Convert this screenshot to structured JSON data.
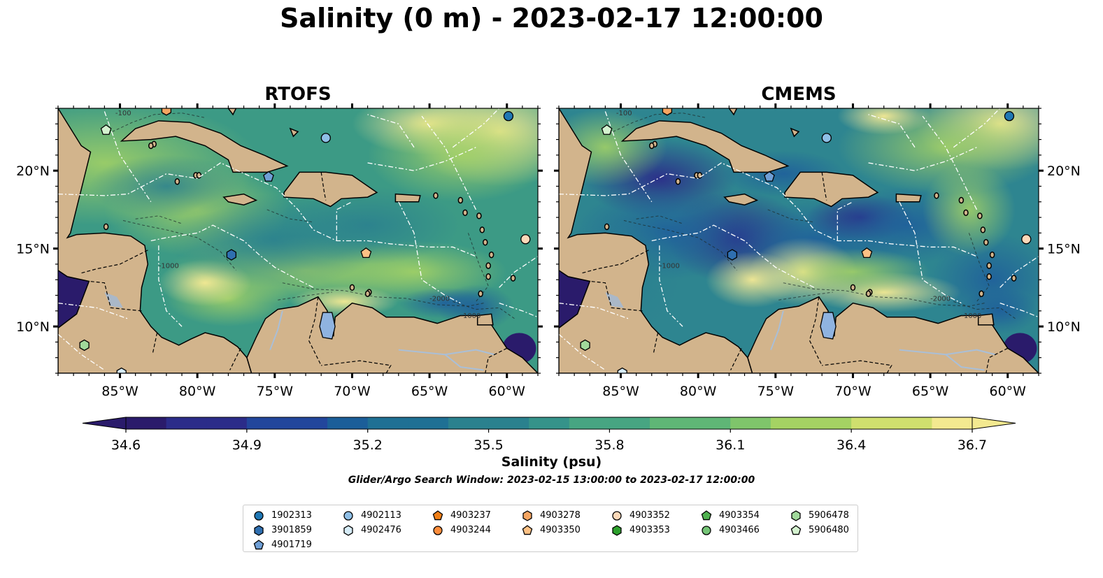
{
  "title": "Salinity (0 m) - 2023-02-17 12:00:00",
  "panels": [
    {
      "title": "RTOFS",
      "style": "rtofs"
    },
    {
      "title": "CMEMS",
      "style": "cmems"
    }
  ],
  "map": {
    "lon_range": [
      -89,
      -58
    ],
    "lat_range": [
      7,
      24
    ],
    "lon_ticks": [
      "85°W",
      "80°W",
      "75°W",
      "70°W",
      "65°W",
      "60°W"
    ],
    "lon_tick_values": [
      -85,
      -80,
      -75,
      -70,
      -65,
      -60
    ],
    "lat_ticks": [
      "20°N",
      "15°N",
      "10°N"
    ],
    "lat_tick_values": [
      20,
      15,
      10
    ],
    "land_color": "#d2b48c",
    "coastline_color": "#000000",
    "boundary_color": "#ffffff",
    "contour_labels": [
      "-100",
      "-1000",
      "-2000"
    ]
  },
  "colorbar": {
    "label": "Salinity (psu)",
    "vmin": 34.6,
    "vmax": 36.7,
    "ticks": [
      "34.6",
      "34.9",
      "35.2",
      "35.5",
      "35.8",
      "36.1",
      "36.4",
      "36.7"
    ],
    "tick_values": [
      34.6,
      34.9,
      35.2,
      35.5,
      35.8,
      36.1,
      36.4,
      36.7
    ],
    "extend": "both",
    "colors": [
      "#2a1b6b",
      "#2b2c89",
      "#22469c",
      "#1b5e99",
      "#1f7094",
      "#2a818e",
      "#35938a",
      "#47a582",
      "#5fb676",
      "#7fc56b",
      "#a5d263",
      "#cfdf6e",
      "#f3e990"
    ]
  },
  "search_window": "Glider/Argo Search Window: 2023-02-15 13:00:00 to 2023-02-17 12:00:00",
  "legend": [
    {
      "id": "1902313",
      "marker": "circle",
      "color": "#1f77b4"
    },
    {
      "id": "3901859",
      "marker": "hexagon",
      "color": "#2f6fb0"
    },
    {
      "id": "4901719",
      "marker": "pentagon",
      "color": "#6f9fd6"
    },
    {
      "id": "4902113",
      "marker": "circle",
      "color": "#8fbfe6"
    },
    {
      "id": "4902476",
      "marker": "hexagon",
      "color": "#d6ecf8"
    },
    {
      "id": "4903237",
      "marker": "pentagon",
      "color": "#f07f17"
    },
    {
      "id": "4903244",
      "marker": "circle",
      "color": "#fd8d3c"
    },
    {
      "id": "4903278",
      "marker": "hexagon",
      "color": "#f5a561"
    },
    {
      "id": "4903350",
      "marker": "pentagon",
      "color": "#fdc185"
    },
    {
      "id": "4903352",
      "marker": "circle",
      "color": "#fdd9b9"
    },
    {
      "id": "4903353",
      "marker": "hexagon",
      "color": "#2ca02c"
    },
    {
      "id": "4903354",
      "marker": "pentagon",
      "color": "#4fb14f"
    },
    {
      "id": "4903466",
      "marker": "circle",
      "color": "#74c476"
    },
    {
      "id": "5906478",
      "marker": "hexagon",
      "color": "#a1d99b"
    },
    {
      "id": "5906480",
      "marker": "pentagon",
      "color": "#d4f2cf"
    }
  ],
  "floats": [
    {
      "id": "1902313",
      "lon": -59.9,
      "lat": 23.5
    },
    {
      "id": "4902113",
      "lon": -71.7,
      "lat": 22.1
    },
    {
      "id": "4903352",
      "lon": -58.8,
      "lat": 15.6
    },
    {
      "id": "3901859",
      "lon": -77.8,
      "lat": 14.6
    },
    {
      "id": "4901719",
      "lon": -75.4,
      "lat": 19.6
    },
    {
      "id": "4903350",
      "lon": -69.1,
      "lat": 14.7
    },
    {
      "id": "4903278",
      "lon": -82.0,
      "lat": 23.9
    },
    {
      "id": "5906480",
      "lon": -85.9,
      "lat": 22.6
    },
    {
      "id": "5906478",
      "lon": -87.3,
      "lat": 8.8
    },
    {
      "id": "4902476",
      "lon": -84.9,
      "lat": 7.0
    }
  ]
}
